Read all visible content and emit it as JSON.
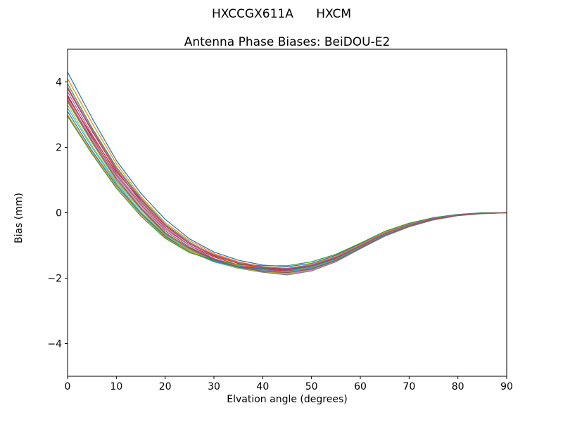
{
  "figure": {
    "background": "#ffffff",
    "axes_edge_color": "#000000",
    "line_width": 1.2
  },
  "chart_data": {
    "type": "line",
    "suptitle": "HXCCGX611A      HXCM",
    "title": "Antenna Phase Biases: BeiDOU-E2",
    "xlabel": "Elvation angle (degrees)",
    "ylabel": "Bias (mm)",
    "xlim": [
      0,
      90
    ],
    "ylim": [
      -5,
      5
    ],
    "xticks": [
      0,
      10,
      20,
      30,
      40,
      50,
      60,
      70,
      80,
      90
    ],
    "yticks": [
      -4,
      -2,
      0,
      2,
      4
    ],
    "grid": false,
    "legend": "none",
    "x": [
      0,
      5,
      10,
      15,
      20,
      25,
      30,
      35,
      40,
      45,
      50,
      55,
      60,
      65,
      70,
      75,
      80,
      85,
      90
    ],
    "series": [
      {
        "color": "#1f77b4",
        "values": [
          4.3,
          2.9,
          1.6,
          0.6,
          -0.2,
          -0.8,
          -1.2,
          -1.45,
          -1.6,
          -1.65,
          -1.55,
          -1.3,
          -0.95,
          -0.6,
          -0.35,
          -0.15,
          -0.05,
          0.0,
          0.0
        ]
      },
      {
        "color": "#ff7f0e",
        "values": [
          4.1,
          2.75,
          1.5,
          0.5,
          -0.3,
          -0.85,
          -1.25,
          -1.5,
          -1.65,
          -1.7,
          -1.6,
          -1.35,
          -1.0,
          -0.63,
          -0.37,
          -0.17,
          -0.06,
          -0.01,
          0.0
        ]
      },
      {
        "color": "#2ca02c",
        "values": [
          3.95,
          2.6,
          1.4,
          0.45,
          -0.35,
          -0.9,
          -1.3,
          -1.55,
          -1.7,
          -1.75,
          -1.65,
          -1.4,
          -1.02,
          -0.65,
          -0.38,
          -0.18,
          -0.07,
          -0.01,
          0.0
        ]
      },
      {
        "color": "#d62728",
        "values": [
          3.8,
          2.5,
          1.3,
          0.35,
          -0.45,
          -1.0,
          -1.35,
          -1.6,
          -1.72,
          -1.78,
          -1.68,
          -1.42,
          -1.05,
          -0.67,
          -0.4,
          -0.19,
          -0.07,
          -0.02,
          0.0
        ]
      },
      {
        "color": "#9467bd",
        "values": [
          3.7,
          2.4,
          1.2,
          0.3,
          -0.5,
          -1.0,
          -1.4,
          -1.62,
          -1.75,
          -1.8,
          -1.7,
          -1.45,
          -1.07,
          -0.68,
          -0.4,
          -0.2,
          -0.08,
          -0.02,
          0.0
        ]
      },
      {
        "color": "#8c564b",
        "values": [
          3.6,
          2.3,
          1.15,
          0.25,
          -0.55,
          -1.05,
          -1.42,
          -1.65,
          -1.78,
          -1.85,
          -1.73,
          -1.47,
          -1.08,
          -0.7,
          -0.42,
          -0.2,
          -0.08,
          -0.02,
          0.0
        ]
      },
      {
        "color": "#e377c2",
        "values": [
          3.5,
          2.25,
          1.1,
          0.2,
          -0.6,
          -1.1,
          -1.45,
          -1.68,
          -1.8,
          -1.88,
          -1.75,
          -1.48,
          -1.1,
          -0.7,
          -0.42,
          -0.21,
          -0.08,
          -0.02,
          0.0
        ]
      },
      {
        "color": "#7f7f7f",
        "values": [
          3.4,
          2.15,
          1.0,
          0.12,
          -0.65,
          -1.12,
          -1.48,
          -1.7,
          -1.82,
          -1.9,
          -1.78,
          -1.5,
          -1.1,
          -0.72,
          -0.43,
          -0.22,
          -0.09,
          -0.03,
          0.0
        ]
      },
      {
        "color": "#bcbd22",
        "values": [
          3.3,
          2.05,
          0.95,
          0.08,
          -0.68,
          -1.15,
          -1.5,
          -1.7,
          -1.8,
          -1.85,
          -1.72,
          -1.46,
          -1.08,
          -0.68,
          -0.4,
          -0.2,
          -0.08,
          -0.02,
          0.0
        ]
      },
      {
        "color": "#17becf",
        "values": [
          3.2,
          2.0,
          0.9,
          0.02,
          -0.7,
          -1.18,
          -1.5,
          -1.68,
          -1.78,
          -1.8,
          -1.68,
          -1.42,
          -1.05,
          -0.66,
          -0.38,
          -0.18,
          -0.07,
          -0.02,
          0.0
        ]
      },
      {
        "color": "#1f77b4",
        "values": [
          3.1,
          1.9,
          0.85,
          -0.02,
          -0.72,
          -1.2,
          -1.48,
          -1.65,
          -1.72,
          -1.75,
          -1.62,
          -1.38,
          -1.0,
          -0.62,
          -0.36,
          -0.17,
          -0.06,
          -0.01,
          0.0
        ]
      },
      {
        "color": "#ff7f0e",
        "values": [
          3.0,
          1.85,
          0.8,
          -0.05,
          -0.75,
          -1.2,
          -1.45,
          -1.6,
          -1.68,
          -1.7,
          -1.58,
          -1.33,
          -0.97,
          -0.6,
          -0.34,
          -0.16,
          -0.06,
          -0.01,
          0.0
        ]
      },
      {
        "color": "#2ca02c",
        "values": [
          2.95,
          1.8,
          0.75,
          -0.1,
          -0.78,
          -1.22,
          -1.45,
          -1.58,
          -1.62,
          -1.62,
          -1.5,
          -1.27,
          -0.93,
          -0.57,
          -0.32,
          -0.15,
          -0.05,
          -0.01,
          0.0
        ]
      },
      {
        "color": "#d62728",
        "values": [
          3.55,
          2.35,
          1.25,
          0.4,
          -0.4,
          -0.95,
          -1.32,
          -1.55,
          -1.68,
          -1.72,
          -1.62,
          -1.38,
          -1.02,
          -0.64,
          -0.37,
          -0.18,
          -0.07,
          -0.02,
          0.0
        ]
      },
      {
        "color": "#9467bd",
        "values": [
          3.85,
          2.55,
          1.35,
          0.42,
          -0.38,
          -0.92,
          -1.28,
          -1.52,
          -1.66,
          -1.7,
          -1.6,
          -1.36,
          -1.0,
          -0.63,
          -0.36,
          -0.17,
          -0.06,
          -0.02,
          0.0
        ]
      },
      {
        "color": "#8c564b",
        "values": [
          3.45,
          2.2,
          1.05,
          0.15,
          -0.62,
          -1.08,
          -1.44,
          -1.66,
          -1.79,
          -1.83,
          -1.72,
          -1.46,
          -1.08,
          -0.69,
          -0.41,
          -0.2,
          -0.08,
          -0.02,
          0.0
        ]
      }
    ]
  }
}
